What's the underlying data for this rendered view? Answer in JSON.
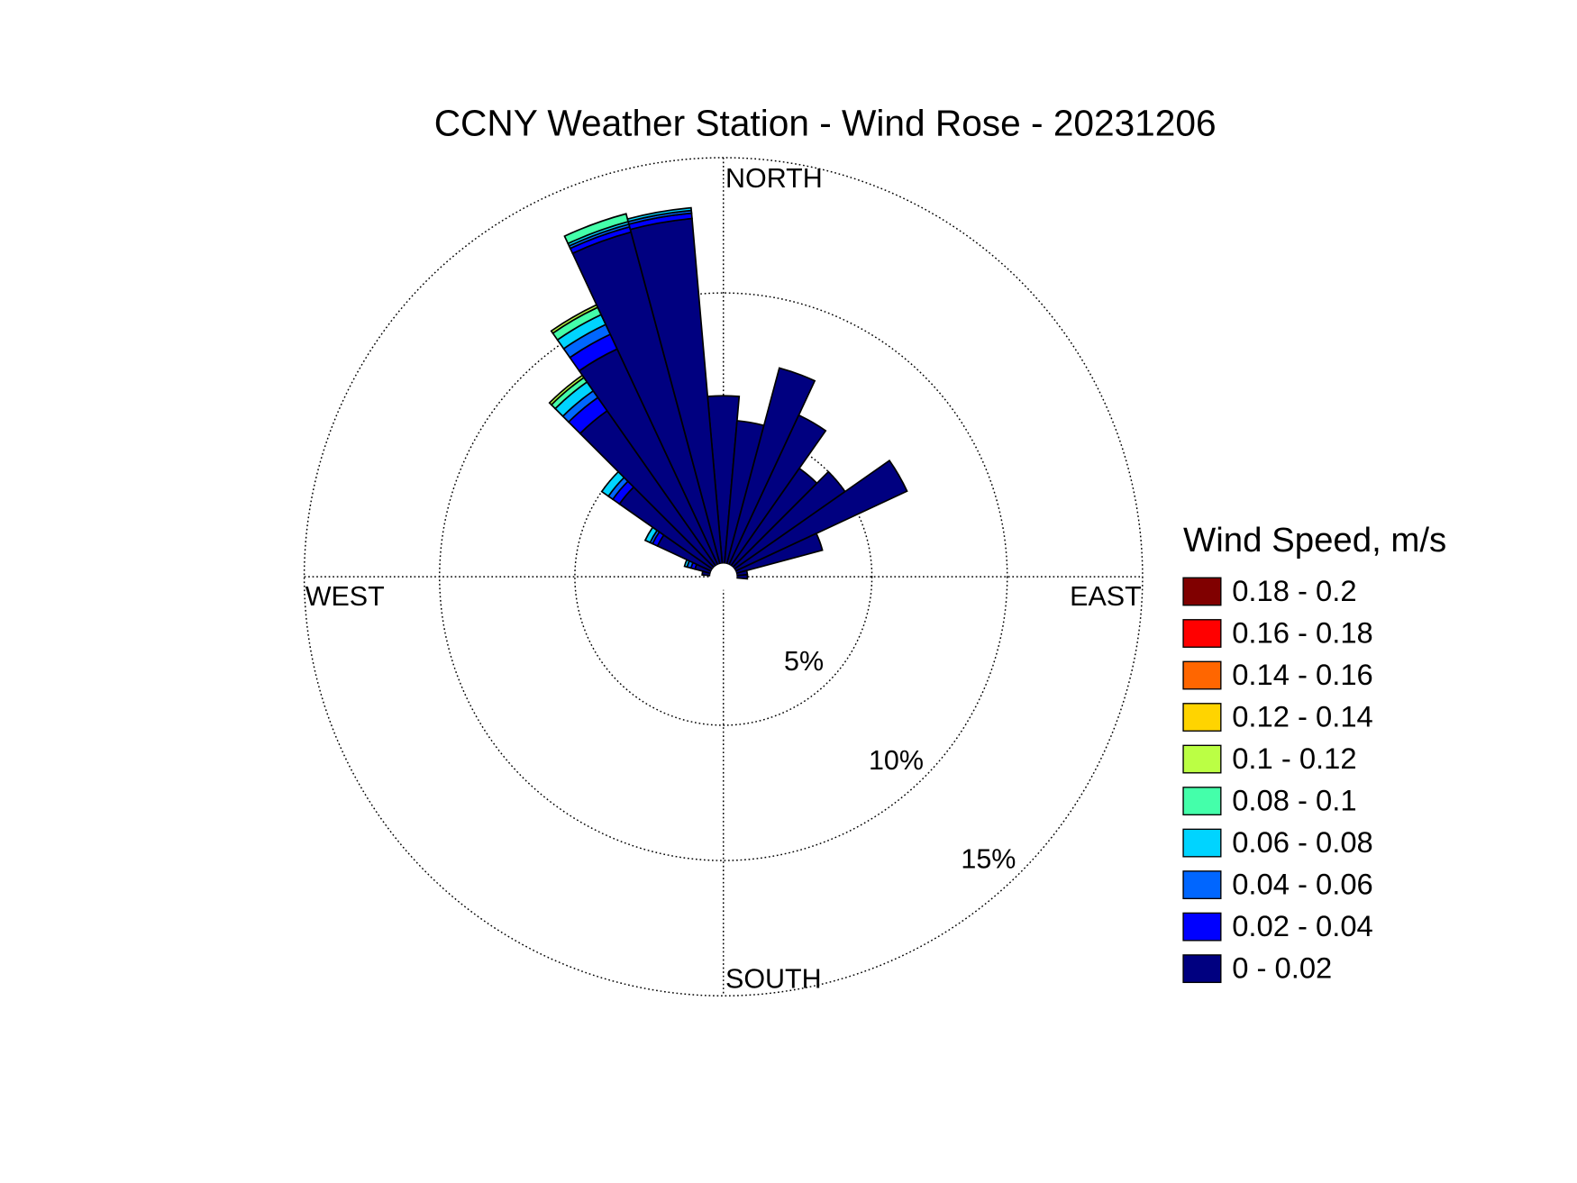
{
  "chart_data": {
    "type": "windrose",
    "title": "CCNY Weather Station - Wind Rose - 20231206",
    "directions": [
      "NORTH",
      "EAST",
      "SOUTH",
      "WEST"
    ],
    "legend_title": "Wind Speed, m/s",
    "categories": [
      null,
      null,
      null,
      null,
      null,
      null,
      null,
      null,
      null,
      null,
      null,
      null,
      null,
      null,
      null,
      null,
      null,
      null,
      null,
      null,
      null,
      null,
      null,
      null,
      null,
      null,
      null,
      null,
      null,
      null,
      null,
      null,
      null,
      null,
      null,
      null
    ],
    "ylim": [
      0,
      15
    ],
    "yticks": [
      {
        "value": 5,
        "label": "5%"
      },
      {
        "value": 10,
        "label": "10%"
      },
      {
        "value": 15,
        "label": "15%"
      }
    ],
    "grid": true,
    "legend": "right",
    "series": [
      {
        "name": "0 - 0.02",
        "color": "#000080",
        "values": [
          6.2,
          5.3,
          7.5,
          6.1,
          4.4,
          5.0,
          7.0,
          3.3,
          0.4,
          0.4,
          0,
          0,
          0,
          0,
          0,
          0,
          0,
          0,
          0,
          0,
          0,
          0,
          0,
          0,
          0,
          0,
          0,
          0,
          0.3,
          0.6,
          2.2,
          4.2,
          7.0,
          8.8,
          12.7,
          12.8
        ]
      },
      {
        "name": "0.02 - 0.04",
        "color": "#0000ff",
        "values": [
          0,
          0,
          0,
          0,
          0,
          0,
          0,
          0,
          0,
          0,
          0,
          0,
          0,
          0,
          0,
          0,
          0,
          0,
          0,
          0,
          0,
          0,
          0,
          0,
          0,
          0,
          0,
          0,
          0,
          0.15,
          0.2,
          0.3,
          0.6,
          0.6,
          0.2,
          0.2
        ]
      },
      {
        "name": "0.04 - 0.06",
        "color": "#0066ff",
        "values": [
          0,
          0,
          0,
          0,
          0,
          0,
          0,
          0,
          0,
          0,
          0,
          0,
          0,
          0,
          0,
          0,
          0,
          0,
          0,
          0,
          0,
          0,
          0,
          0,
          0,
          0,
          0,
          0,
          0,
          0.15,
          0.1,
          0.2,
          0.3,
          0.4,
          0.1,
          0.1
        ]
      },
      {
        "name": "0.06 - 0.08",
        "color": "#00d4ff",
        "values": [
          0,
          0,
          0,
          0,
          0,
          0,
          0,
          0,
          0,
          0,
          0,
          0,
          0,
          0,
          0,
          0,
          0,
          0,
          0,
          0,
          0,
          0,
          0,
          0,
          0,
          0,
          0,
          0,
          0,
          0.1,
          0.2,
          0.3,
          0.4,
          0.4,
          0.1,
          0.1
        ]
      },
      {
        "name": "0.08 - 0.1",
        "color": "#44ffaa",
        "values": [
          0,
          0,
          0,
          0,
          0,
          0,
          0,
          0,
          0,
          0,
          0,
          0,
          0,
          0,
          0,
          0,
          0,
          0,
          0,
          0,
          0,
          0,
          0,
          0,
          0,
          0,
          0,
          0,
          0,
          0,
          0,
          0,
          0.2,
          0.3,
          0.3,
          0
        ]
      },
      {
        "name": "0.1 - 0.12",
        "color": "#bbff44",
        "values": [
          0,
          0,
          0,
          0,
          0,
          0,
          0,
          0,
          0,
          0,
          0,
          0,
          0,
          0,
          0,
          0,
          0,
          0,
          0,
          0,
          0,
          0,
          0,
          0,
          0,
          0,
          0,
          0,
          0,
          0,
          0,
          0,
          0.1,
          0.1,
          0,
          0
        ]
      },
      {
        "name": "0.12 - 0.14",
        "color": "#ffd400",
        "values": [
          0,
          0,
          0,
          0,
          0,
          0,
          0,
          0,
          0,
          0,
          0,
          0,
          0,
          0,
          0,
          0,
          0,
          0,
          0,
          0,
          0,
          0,
          0,
          0,
          0,
          0,
          0,
          0,
          0,
          0,
          0,
          0,
          0,
          0,
          0,
          0
        ]
      },
      {
        "name": "0.14 - 0.16",
        "color": "#ff6600",
        "values": [
          0,
          0,
          0,
          0,
          0,
          0,
          0,
          0,
          0,
          0,
          0,
          0,
          0,
          0,
          0,
          0,
          0,
          0,
          0,
          0,
          0,
          0,
          0,
          0,
          0,
          0,
          0,
          0,
          0,
          0,
          0,
          0,
          0,
          0,
          0,
          0
        ]
      },
      {
        "name": "0.16 - 0.18",
        "color": "#ff0000",
        "values": [
          0,
          0,
          0,
          0,
          0,
          0,
          0,
          0,
          0,
          0,
          0,
          0,
          0,
          0,
          0,
          0,
          0,
          0,
          0,
          0,
          0,
          0,
          0,
          0,
          0,
          0,
          0,
          0,
          0,
          0,
          0,
          0,
          0,
          0,
          0,
          0
        ]
      },
      {
        "name": "0.18 - 0.2",
        "color": "#800000",
        "values": [
          0,
          0,
          0,
          0,
          0,
          0,
          0,
          0,
          0,
          0,
          0,
          0,
          0,
          0,
          0,
          0,
          0,
          0,
          0,
          0,
          0,
          0,
          0,
          0,
          0,
          0,
          0,
          0,
          0,
          0,
          0,
          0,
          0,
          0,
          0,
          0
        ]
      }
    ]
  }
}
